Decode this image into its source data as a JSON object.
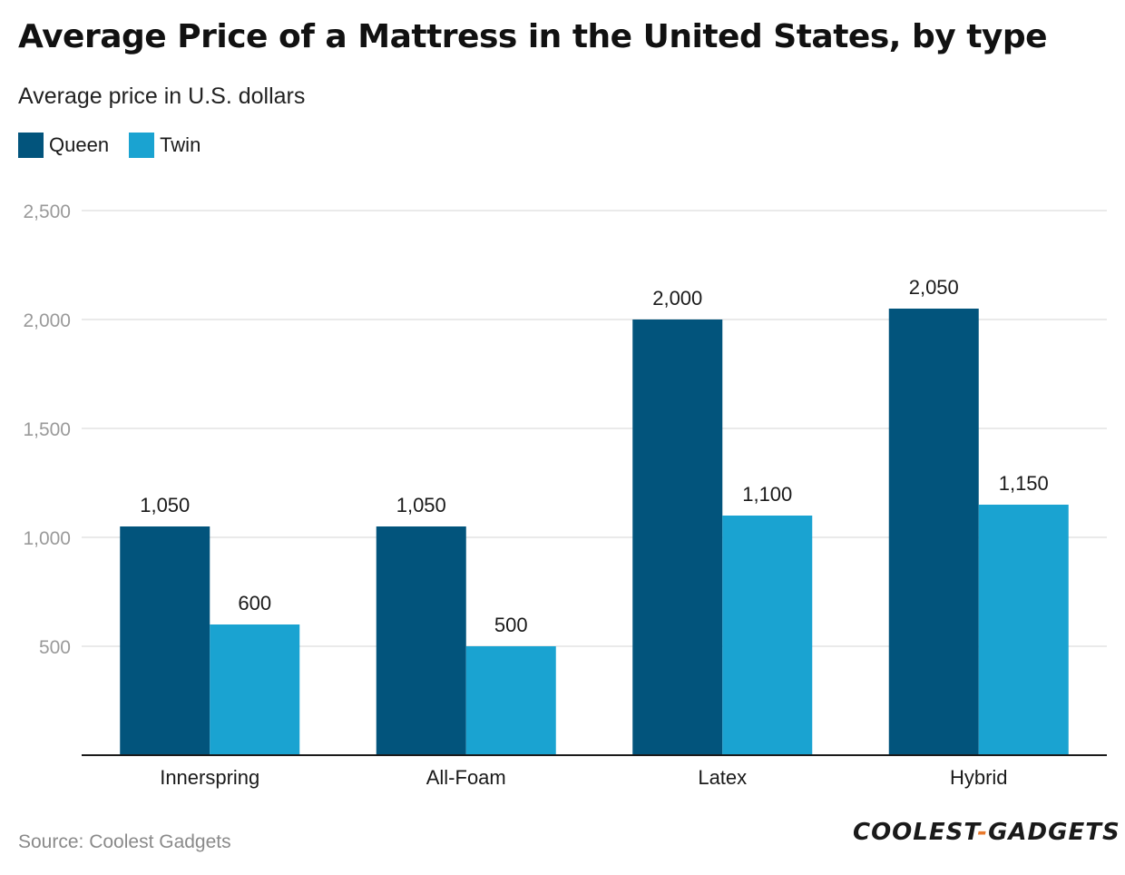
{
  "title": "Average Price of a Mattress in the United States, by type",
  "subtitle": "Average price in U.S. dollars",
  "legend": [
    {
      "label": "Queen",
      "color": "#02547c"
    },
    {
      "label": "Twin",
      "color": "#1aa3d1"
    }
  ],
  "source": "Source: Coolest Gadgets",
  "brand": {
    "left": "COOLEST",
    "sep": "-",
    "right": "GADGETS"
  },
  "chart_data": {
    "type": "bar",
    "title": "Average Price of a Mattress in the United States, by type",
    "xlabel": "",
    "ylabel": "Average price in U.S. dollars",
    "categories": [
      "Innerspring",
      "All-Foam",
      "Latex",
      "Hybrid"
    ],
    "series": [
      {
        "name": "Queen",
        "values": [
          1050,
          1050,
          2000,
          2050
        ],
        "labels": [
          "1,050",
          "1,050",
          "2,000",
          "2,050"
        ]
      },
      {
        "name": "Twin",
        "values": [
          600,
          500,
          1100,
          1150
        ],
        "labels": [
          "600",
          "500",
          "1,100",
          "1,150"
        ]
      }
    ],
    "ylim": [
      0,
      2500
    ],
    "yticks": [
      500,
      1000,
      1500,
      2000,
      2500
    ],
    "ytick_labels": [
      "500",
      "1,000",
      "1,500",
      "2,000",
      "2,500"
    ],
    "grid": true,
    "legend_position": "top-left"
  }
}
